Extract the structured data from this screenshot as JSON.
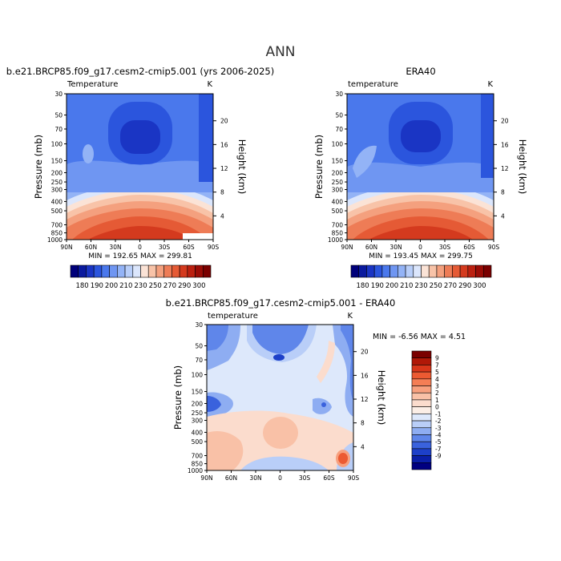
{
  "figure": {
    "title": "ANN"
  },
  "chart_data": [
    {
      "type": "heatmap",
      "title": "b.e21.BRCP85.f09_g17.cesm2-cmip5.001 (yrs 2006-2025)",
      "subtitle": "Temperature",
      "units": "K",
      "xlabel": "",
      "ylabel": "Pressure (mb)",
      "y2label": "Height (km)",
      "x_ticks": [
        "90N",
        "60N",
        "30N",
        "0",
        "30S",
        "60S",
        "90S"
      ],
      "y_ticks": [
        30,
        50,
        70,
        100,
        150,
        200,
        250,
        300,
        400,
        500,
        700,
        850,
        1000
      ],
      "y2_ticks": [
        4,
        8,
        12,
        16,
        20
      ],
      "stats": "MIN = 192.65   MAX = 299.81",
      "min": 192.65,
      "max": 299.81
    },
    {
      "type": "heatmap",
      "title": "ERA40",
      "subtitle": "temperature",
      "units": "K",
      "xlabel": "",
      "ylabel": "Pressure (mb)",
      "y2label": "Height (km)",
      "x_ticks": [
        "90N",
        "60N",
        "30N",
        "0",
        "30S",
        "60S",
        "90S"
      ],
      "y_ticks": [
        30,
        50,
        70,
        100,
        150,
        200,
        250,
        300,
        400,
        500,
        700,
        850,
        1000
      ],
      "y2_ticks": [
        4,
        8,
        12,
        16,
        20
      ],
      "stats": "MIN = 193.45   MAX = 299.75",
      "min": 193.45,
      "max": 299.75
    },
    {
      "type": "heatmap",
      "title": "b.e21.BRCP85.f09_g17.cesm2-cmip5.001 - ERA40",
      "subtitle": "temperature",
      "units": "K",
      "xlabel": "",
      "ylabel": "Pressure (mb)",
      "y2label": "Height (km)",
      "x_ticks": [
        "90N",
        "60N",
        "30N",
        "0",
        "30S",
        "60S",
        "90S"
      ],
      "y_ticks": [
        30,
        50,
        70,
        100,
        150,
        200,
        250,
        300,
        400,
        500,
        700,
        850,
        1000
      ],
      "y2_ticks": [
        4,
        8,
        12,
        16,
        20
      ],
      "stats": "MIN =  -6.56   MAX =   4.51",
      "min": -6.56,
      "max": 4.51
    }
  ],
  "colorbars": {
    "absolute": {
      "labels": [
        "180",
        "190",
        "200",
        "210",
        "230",
        "250",
        "270",
        "290",
        "300"
      ],
      "colors": [
        "#00007a",
        "#0a1a9e",
        "#1a35c4",
        "#2b55dd",
        "#4a78ec",
        "#6f96f2",
        "#93b3f6",
        "#b8cef9",
        "#dbe6fc",
        "#fbe3d6",
        "#f8c3a8",
        "#f4a07e",
        "#ee7c56",
        "#e55a35",
        "#d43a1e",
        "#bb2010",
        "#9a0c06",
        "#7a0000"
      ]
    },
    "difference": {
      "labels": [
        "9",
        "7",
        "5",
        "4",
        "3",
        "2",
        "1",
        "0",
        "-1",
        "-2",
        "-3",
        "-4",
        "-5",
        "-7",
        "-9"
      ],
      "colors": [
        "#7a0000",
        "#b01808",
        "#d8361a",
        "#ec5a32",
        "#f47e55",
        "#f7a07e",
        "#f9c1a7",
        "#fbdccd",
        "#fbeee6",
        "#dde8fb",
        "#b9cef8",
        "#8eadf2",
        "#5f86ea",
        "#3a62dd",
        "#1d40c9",
        "#0a1fa8",
        "#000080"
      ]
    }
  }
}
